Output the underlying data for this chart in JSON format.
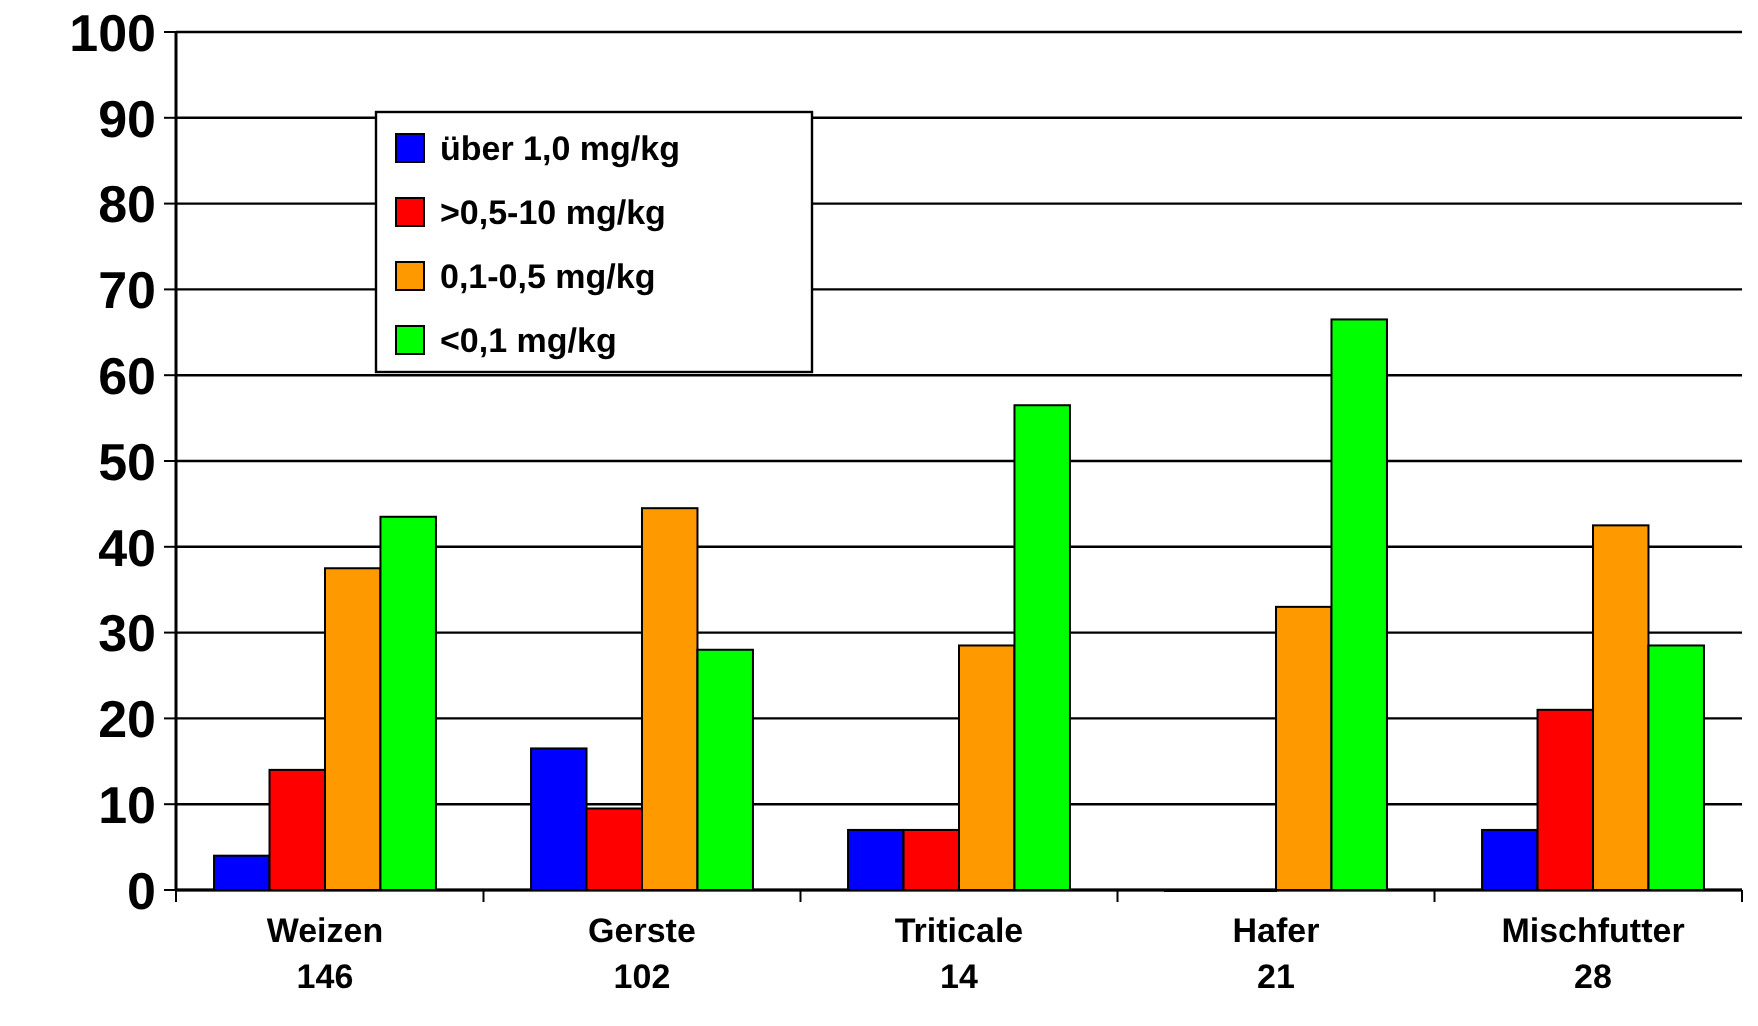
{
  "chart_data": {
    "type": "bar",
    "categories": [
      "Weizen\n146",
      "Gerste\n102",
      "Triticale\n14",
      "Hafer\n21",
      "Mischfutter\n28"
    ],
    "series": [
      {
        "name": "über 1,0 mg/kg",
        "color": "#0000ff",
        "values": [
          4,
          16.5,
          7,
          0,
          7
        ]
      },
      {
        "name": ">0,5-10 mg/kg",
        "color": "#ff0000",
        "values": [
          14,
          9.5,
          7,
          0,
          21
        ]
      },
      {
        "name": "0,1-0,5 mg/kg",
        "color": "#ff9900",
        "values": [
          37.5,
          44.5,
          28.5,
          33,
          42.5
        ]
      },
      {
        "name": "<0,1 mg/kg",
        "color": "#00ff00",
        "values": [
          43.5,
          28,
          56.5,
          66.5,
          28.5
        ]
      }
    ],
    "ylim": [
      0,
      100
    ],
    "yticks": [
      0,
      10,
      20,
      30,
      40,
      50,
      60,
      70,
      80,
      90,
      100
    ],
    "grid": "y",
    "legend": "top left"
  }
}
